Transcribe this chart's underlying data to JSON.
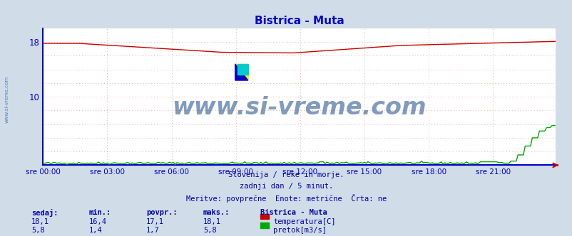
{
  "title": "Bistrica - Muta",
  "title_color": "#0000cc",
  "bg_color": "#d0dce8",
  "plot_bg_color": "#ffffff",
  "grid_color": "#e8b0b0",
  "axis_color": "#0000cc",
  "tick_color": "#0000cc",
  "watermark_text": "www.si-vreme.com",
  "watermark_color": "#1a4a8a",
  "ylim": [
    0,
    20
  ],
  "yticks": [
    0,
    2,
    4,
    6,
    8,
    10,
    12,
    14,
    16,
    18
  ],
  "ytick_labels_show": [
    10,
    18
  ],
  "n_points": 288,
  "temp_color": "#cc0000",
  "flow_color": "#00aa00",
  "xtick_labels": [
    "sre 00:00",
    "sre 03:00",
    "sre 06:00",
    "sre 09:00",
    "sre 12:00",
    "sre 15:00",
    "sre 18:00",
    "sre 21:00"
  ],
  "xtick_positions": [
    0,
    36,
    72,
    108,
    144,
    180,
    216,
    252
  ],
  "footer_lines": [
    "Slovenija / reke in morje.",
    "zadnji dan / 5 minut.",
    "Meritve: povprečne  Enote: metrične  Črta: ne"
  ],
  "footer_color": "#0000aa",
  "table_header": [
    "sedaj:",
    "min.:",
    "povpr.:",
    "maks.:",
    "Bistrica - Muta"
  ],
  "table_row1": [
    "18,1",
    "16,4",
    "17,1",
    "18,1",
    "temperatura[C]"
  ],
  "table_row2": [
    "5,8",
    "1,4",
    "1,7",
    "5,8",
    "pretok[m3/s]"
  ],
  "table_color": "#0000aa",
  "left_watermark": "www.si-vreme.com",
  "left_watermark_color": "#4466aa"
}
